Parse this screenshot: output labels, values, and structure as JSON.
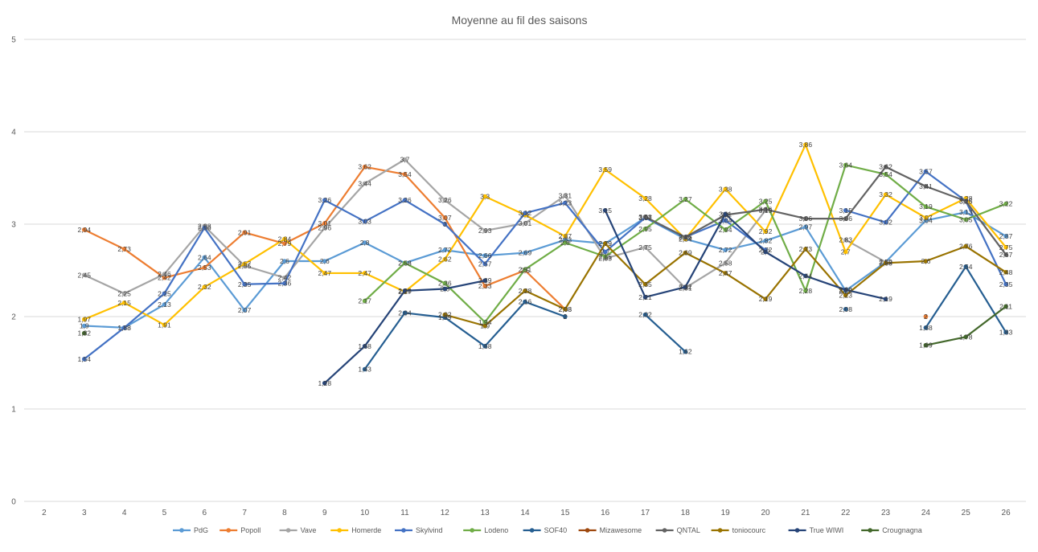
{
  "chart_data": {
    "type": "line",
    "title": "Moyenne au fil des saisons",
    "xlabel": "",
    "ylabel": "",
    "ylim": [
      0,
      5
    ],
    "y_ticks": [
      0,
      1,
      2,
      3,
      4,
      5
    ],
    "categories": [
      "2",
      "3",
      "4",
      "5",
      "6",
      "7",
      "8",
      "9",
      "10",
      "11",
      "12",
      "13",
      "14",
      "15",
      "16",
      "17",
      "18",
      "19",
      "20",
      "21",
      "22",
      "23",
      "24",
      "25",
      "26"
    ],
    "legend_position": "bottom",
    "grid": true,
    "series": [
      {
        "name": "PdG",
        "color": "#5B9BD5",
        "values": [
          null,
          1.9,
          1.88,
          2.13,
          2.64,
          2.07,
          2.6,
          2.6,
          2.8,
          2.58,
          2.72,
          2.66,
          2.69,
          2.83,
          2.79,
          3.07,
          2.84,
          2.72,
          2.82,
          2.97,
          2.28,
          2.59,
          3.04,
          3.13,
          2.87
        ]
      },
      {
        "name": "Popoll",
        "color": "#ED7D31",
        "values": [
          null,
          2.94,
          2.73,
          2.42,
          2.53,
          2.91,
          2.79,
          3.01,
          3.62,
          3.54,
          3.07,
          2.33,
          2.5,
          2.08,
          null,
          null,
          null,
          null,
          null,
          null,
          null,
          null,
          2,
          null,
          null
        ]
      },
      {
        "name": "Vave",
        "color": "#A5A5A5",
        "values": [
          null,
          2.45,
          2.25,
          2.46,
          2.98,
          2.55,
          2.42,
          2.96,
          3.44,
          3.7,
          3.26,
          2.93,
          3.01,
          3.31,
          2.63,
          2.75,
          2.31,
          2.58,
          3.15,
          null,
          2.83,
          2.59,
          null,
          null,
          null
        ]
      },
      {
        "name": "Homerde",
        "color": "#FFC000",
        "values": [
          null,
          1.97,
          2.15,
          1.91,
          2.32,
          2.57,
          2.84,
          2.47,
          2.47,
          2.27,
          2.62,
          3.3,
          3.1,
          2.87,
          3.59,
          3.28,
          2.84,
          3.38,
          2.92,
          3.86,
          2.7,
          3.32,
          3.07,
          3.28,
          2.75
        ]
      },
      {
        "name": "Skylvind",
        "color": "#4472C4",
        "values": [
          null,
          1.54,
          1.88,
          2.25,
          2.96,
          2.35,
          2.36,
          3.26,
          3.03,
          3.26,
          3,
          2.57,
          3.12,
          3.23,
          2.7,
          3.07,
          2.86,
          3.04,
          2.72,
          null,
          3.15,
          3.02,
          3.57,
          3.25,
          2.35
        ]
      },
      {
        "name": "Lodeno",
        "color": "#70AD47",
        "values": [
          null,
          null,
          null,
          null,
          null,
          null,
          null,
          null,
          2.17,
          2.58,
          2.36,
          1.94,
          2.51,
          2.8,
          2.65,
          2.95,
          3.27,
          2.94,
          3.25,
          2.28,
          3.64,
          3.54,
          3.19,
          3.05,
          3.22
        ]
      },
      {
        "name": "SOF40",
        "color": "#255E91",
        "values": [
          null,
          null,
          null,
          null,
          null,
          null,
          null,
          null,
          1.43,
          2.04,
          1.99,
          1.68,
          2.16,
          2,
          null,
          2.02,
          1.62,
          null,
          null,
          null,
          2.08,
          null,
          1.88,
          2.54,
          1.83
        ]
      },
      {
        "name": "Mizawesome",
        "color": "#9E480E",
        "values": [
          null,
          null,
          null,
          null,
          null,
          null,
          null,
          null,
          null,
          null,
          null,
          null,
          null,
          null,
          null,
          null,
          null,
          null,
          null,
          null,
          null,
          null,
          null,
          null,
          null
        ]
      },
      {
        "name": "QNTAL",
        "color": "#636363",
        "values": [
          null,
          null,
          null,
          null,
          null,
          null,
          null,
          null,
          null,
          null,
          null,
          null,
          null,
          null,
          null,
          3.08,
          2.86,
          3.1,
          3.16,
          3.06,
          3.06,
          3.62,
          3.41,
          3.25,
          2.67
        ]
      },
      {
        "name": "toniocourc",
        "color": "#997300",
        "values": [
          null,
          null,
          null,
          null,
          null,
          null,
          null,
          null,
          null,
          null,
          2.02,
          1.9,
          2.28,
          2.08,
          2.79,
          2.35,
          2.69,
          2.47,
          2.19,
          2.73,
          2.23,
          2.58,
          2.6,
          2.76,
          2.48
        ]
      },
      {
        "name": "True WIWI",
        "color": "#264478",
        "values": [
          null,
          null,
          null,
          null,
          null,
          null,
          null,
          1.28,
          1.68,
          2.28,
          2.3,
          2.39,
          null,
          null,
          3.15,
          2.21,
          2.32,
          3.11,
          2.7,
          2.44,
          2.29,
          2.19,
          null,
          null,
          null
        ]
      },
      {
        "name": "Crougnagna",
        "color": "#43682B",
        "values": [
          null,
          1.82,
          null,
          null,
          null,
          null,
          null,
          null,
          null,
          null,
          null,
          null,
          null,
          null,
          null,
          null,
          null,
          null,
          null,
          null,
          null,
          null,
          1.69,
          1.78,
          2.11
        ]
      }
    ]
  }
}
